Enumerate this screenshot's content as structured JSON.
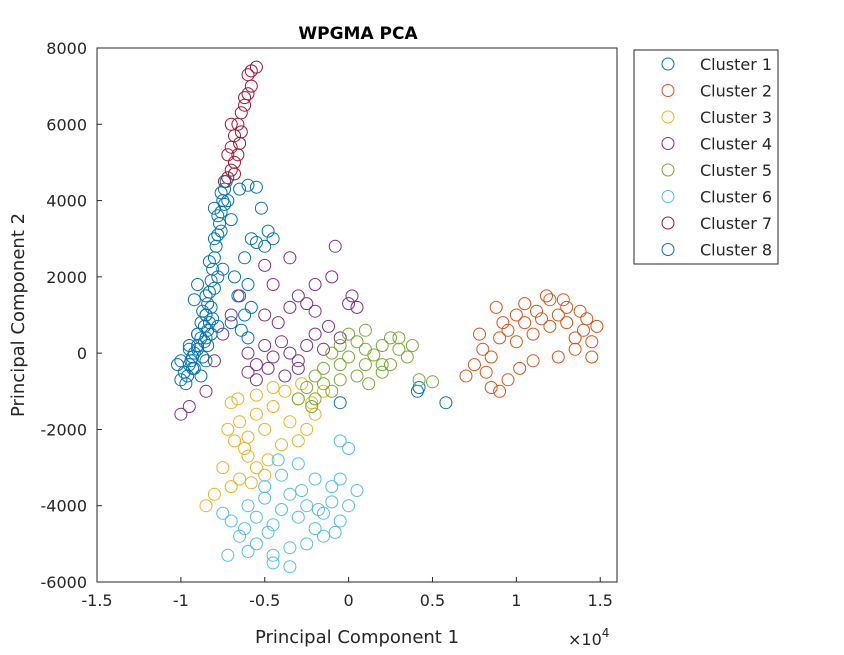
{
  "chart_data": {
    "type": "scatter",
    "title": "WPGMA PCA",
    "xlabel": "Principal Component 1",
    "ylabel": "Principal Component 2",
    "x_exponent_label": "×10",
    "x_exponent_power": "4",
    "x_scale": 10000,
    "xlim": [
      -1.5,
      1.6
    ],
    "ylim": [
      -6000,
      8000
    ],
    "xticks": [
      -1.5,
      -1,
      -0.5,
      0,
      0.5,
      1,
      1.5
    ],
    "xtick_labels": [
      "-1.5",
      "-1",
      "-0.5",
      "0",
      "0.5",
      "1",
      "1.5"
    ],
    "yticks": [
      -6000,
      -4000,
      -2000,
      0,
      2000,
      4000,
      6000,
      8000
    ],
    "ytick_labels": [
      "-6000",
      "-4000",
      "-2000",
      "0",
      "2000",
      "4000",
      "6000",
      "8000"
    ],
    "marker": "open-circle",
    "legend_position": "outside-top-right",
    "series": [
      {
        "name": "Cluster 1",
        "color": "#0072BD",
        "points": [
          [
            -1.0,
            -200
          ],
          [
            -0.93,
            -400
          ],
          [
            -0.97,
            -800
          ],
          [
            -0.9,
            500
          ],
          [
            -0.88,
            -600
          ],
          [
            -0.85,
            -200
          ],
          [
            -1.02,
            -300
          ],
          [
            -0.95,
            100
          ],
          [
            -0.6,
            4400
          ],
          [
            -0.65,
            4300
          ],
          [
            -0.55,
            4350
          ],
          [
            -0.58,
            3000
          ],
          [
            -0.5,
            2800
          ],
          [
            -0.45,
            3000
          ],
          [
            -0.48,
            3200
          ],
          [
            -0.7,
            3500
          ],
          [
            -0.62,
            2500
          ],
          [
            -0.75,
            2200
          ],
          [
            -0.52,
            3800
          ],
          [
            -0.55,
            2900
          ],
          [
            -0.72,
            4000
          ],
          [
            -0.8,
            3800
          ],
          [
            -0.68,
            2000
          ],
          [
            -0.6,
            1800
          ],
          [
            -0.66,
            1500
          ],
          [
            -0.58,
            1200
          ],
          [
            -0.62,
            1000
          ],
          [
            -0.7,
            800
          ],
          [
            -0.64,
            600
          ],
          [
            -0.6,
            400
          ],
          [
            -0.05,
            -1300
          ],
          [
            0.42,
            -900
          ],
          [
            0.58,
            -1300
          ],
          [
            0.41,
            -1000
          ],
          [
            -0.9,
            1800
          ],
          [
            -0.92,
            1400
          ],
          [
            -0.85,
            1000
          ],
          [
            -0.78,
            700
          ]
        ]
      },
      {
        "name": "Cluster 2",
        "color": "#D95319",
        "points": [
          [
            0.7,
            -600
          ],
          [
            0.75,
            -300
          ],
          [
            0.8,
            100
          ],
          [
            0.85,
            -100
          ],
          [
            0.9,
            400
          ],
          [
            0.95,
            600
          ],
          [
            1.0,
            300
          ],
          [
            1.05,
            800
          ],
          [
            1.1,
            500
          ],
          [
            1.15,
            900
          ],
          [
            1.2,
            700
          ],
          [
            1.25,
            1000
          ],
          [
            1.3,
            800
          ],
          [
            1.35,
            400
          ],
          [
            1.4,
            600
          ],
          [
            1.45,
            300
          ],
          [
            1.48,
            700
          ],
          [
            1.42,
            900
          ],
          [
            1.3,
            1200
          ],
          [
            1.2,
            1400
          ],
          [
            1.12,
            1100
          ],
          [
            1.0,
            1000
          ],
          [
            0.92,
            800
          ],
          [
            0.88,
            1200
          ],
          [
            1.05,
            1300
          ],
          [
            1.38,
            1100
          ],
          [
            0.85,
            -900
          ],
          [
            0.9,
            -1000
          ],
          [
            0.95,
            -700
          ],
          [
            1.02,
            -400
          ],
          [
            1.1,
            -200
          ],
          [
            1.25,
            -100
          ],
          [
            1.35,
            100
          ],
          [
            1.45,
            -100
          ],
          [
            1.18,
            1500
          ],
          [
            1.28,
            1400
          ],
          [
            0.78,
            500
          ],
          [
            0.82,
            -500
          ]
        ]
      },
      {
        "name": "Cluster 3",
        "color": "#EDB120",
        "points": [
          [
            -0.7,
            -1300
          ],
          [
            -0.65,
            -1800
          ],
          [
            -0.6,
            -2200
          ],
          [
            -0.55,
            -1600
          ],
          [
            -0.5,
            -2000
          ],
          [
            -0.45,
            -1400
          ],
          [
            -0.4,
            -2400
          ],
          [
            -0.35,
            -1800
          ],
          [
            -0.3,
            -1200
          ],
          [
            -0.25,
            -2000
          ],
          [
            -0.2,
            -1600
          ],
          [
            -0.15,
            -1000
          ],
          [
            -0.6,
            -2700
          ],
          [
            -0.55,
            -3000
          ],
          [
            -0.65,
            -3300
          ],
          [
            -0.75,
            -3000
          ],
          [
            -0.8,
            -3700
          ],
          [
            -0.85,
            -4000
          ],
          [
            -0.7,
            -3500
          ],
          [
            -0.62,
            -2500
          ],
          [
            -0.48,
            -2800
          ],
          [
            -0.38,
            -1000
          ],
          [
            -0.28,
            -800
          ],
          [
            -0.45,
            -900
          ],
          [
            -0.55,
            -1100
          ],
          [
            -0.66,
            -1200
          ],
          [
            -0.72,
            -2000
          ],
          [
            -0.68,
            -2300
          ],
          [
            -0.58,
            -3400
          ],
          [
            -0.5,
            -3200
          ],
          [
            -0.3,
            -2300
          ],
          [
            -0.22,
            -1300
          ]
        ]
      },
      {
        "name": "Cluster 4",
        "color": "#7E2F8E",
        "points": [
          [
            -0.6,
            0
          ],
          [
            -0.55,
            -300
          ],
          [
            -0.5,
            200
          ],
          [
            -0.45,
            -100
          ],
          [
            -0.4,
            300
          ],
          [
            -0.35,
            0
          ],
          [
            -0.3,
            -200
          ],
          [
            -0.25,
            200
          ],
          [
            -0.2,
            500
          ],
          [
            -0.15,
            100
          ],
          [
            -0.6,
            -500
          ],
          [
            -0.55,
            -700
          ],
          [
            -0.48,
            -400
          ],
          [
            -0.38,
            -600
          ],
          [
            -0.3,
            -400
          ],
          [
            -0.5,
            1000
          ],
          [
            -0.42,
            800
          ],
          [
            -0.35,
            1200
          ],
          [
            -0.3,
            1500
          ],
          [
            -0.25,
            1300
          ],
          [
            -0.2,
            1100
          ],
          [
            -0.45,
            1800
          ],
          [
            -0.5,
            2300
          ],
          [
            -0.35,
            2500
          ],
          [
            -0.2,
            1800
          ],
          [
            -0.1,
            2000
          ],
          [
            -0.08,
            2800
          ],
          [
            0.02,
            1500
          ],
          [
            0.05,
            1200
          ],
          [
            -0.65,
            1500
          ],
          [
            -0.7,
            1000
          ],
          [
            -0.75,
            500
          ],
          [
            -0.8,
            -200
          ],
          [
            -0.85,
            -1000
          ],
          [
            -1.0,
            -1600
          ],
          [
            -0.95,
            -1400
          ],
          [
            -0.12,
            700
          ],
          [
            -0.05,
            400
          ],
          [
            0.0,
            1300
          ]
        ]
      },
      {
        "name": "Cluster 5",
        "color": "#77AC30",
        "points": [
          [
            -0.1,
            0
          ],
          [
            -0.05,
            200
          ],
          [
            0.0,
            -100
          ],
          [
            0.05,
            300
          ],
          [
            0.1,
            100
          ],
          [
            0.15,
            -50
          ],
          [
            0.2,
            200
          ],
          [
            0.25,
            400
          ],
          [
            0.3,
            100
          ],
          [
            0.35,
            -100
          ],
          [
            0.38,
            200
          ],
          [
            0.0,
            500
          ],
          [
            0.1,
            600
          ],
          [
            0.2,
            -300
          ],
          [
            -0.05,
            -300
          ],
          [
            -0.15,
            -400
          ],
          [
            -0.2,
            -600
          ],
          [
            -0.25,
            -900
          ],
          [
            -0.3,
            -1200
          ],
          [
            -0.15,
            -800
          ],
          [
            -0.05,
            -700
          ],
          [
            0.05,
            -600
          ],
          [
            0.12,
            -800
          ],
          [
            -0.1,
            -1000
          ],
          [
            0.2,
            -500
          ],
          [
            0.25,
            -300
          ],
          [
            0.42,
            -700
          ],
          [
            0.5,
            -750
          ],
          [
            -0.2,
            -1200
          ],
          [
            -0.22,
            -1400
          ],
          [
            0.3,
            400
          ],
          [
            0.1,
            -300
          ]
        ]
      },
      {
        "name": "Cluster 6",
        "color": "#4DBEEE",
        "points": [
          [
            -0.6,
            -4000
          ],
          [
            -0.55,
            -4300
          ],
          [
            -0.5,
            -3800
          ],
          [
            -0.45,
            -4500
          ],
          [
            -0.4,
            -4100
          ],
          [
            -0.35,
            -3700
          ],
          [
            -0.3,
            -4300
          ],
          [
            -0.25,
            -4000
          ],
          [
            -0.2,
            -4600
          ],
          [
            -0.15,
            -4200
          ],
          [
            -0.1,
            -3900
          ],
          [
            -0.05,
            -4400
          ],
          [
            0.0,
            -4000
          ],
          [
            -0.7,
            -4400
          ],
          [
            -0.75,
            -4200
          ],
          [
            -0.65,
            -4800
          ],
          [
            -0.55,
            -5000
          ],
          [
            -0.45,
            -5300
          ],
          [
            -0.35,
            -5100
          ],
          [
            -0.25,
            -5000
          ],
          [
            -0.15,
            -4800
          ],
          [
            -0.4,
            -3200
          ],
          [
            -0.3,
            -2900
          ],
          [
            -0.2,
            -3300
          ],
          [
            -0.1,
            -3500
          ],
          [
            -0.05,
            -3300
          ],
          [
            0.05,
            -3600
          ],
          [
            0.0,
            -2500
          ],
          [
            -0.05,
            -2300
          ],
          [
            -0.35,
            -5600
          ],
          [
            -0.45,
            -5500
          ],
          [
            -0.6,
            -5200
          ],
          [
            -0.72,
            -5300
          ],
          [
            -0.5,
            -3500
          ],
          [
            -0.42,
            -2800
          ],
          [
            -0.28,
            -3600
          ],
          [
            -0.18,
            -4100
          ],
          [
            -0.08,
            -4700
          ],
          [
            -0.62,
            -4600
          ],
          [
            -0.48,
            -4700
          ]
        ]
      },
      {
        "name": "Cluster 7",
        "color": "#A2142F",
        "points": [
          [
            -0.72,
            4600
          ],
          [
            -0.7,
            4800
          ],
          [
            -0.68,
            5000
          ],
          [
            -0.66,
            5200
          ],
          [
            -0.7,
            5400
          ],
          [
            -0.65,
            5500
          ],
          [
            -0.68,
            5700
          ],
          [
            -0.66,
            6000
          ],
          [
            -0.64,
            6300
          ],
          [
            -0.62,
            6500
          ],
          [
            -0.6,
            6800
          ],
          [
            -0.58,
            7000
          ],
          [
            -0.6,
            7300
          ],
          [
            -0.58,
            7400
          ],
          [
            -0.55,
            7500
          ],
          [
            -0.7,
            6000
          ],
          [
            -0.72,
            5200
          ],
          [
            -0.68,
            4700
          ],
          [
            -0.74,
            4500
          ],
          [
            -0.64,
            5800
          ],
          [
            -0.62,
            6700
          ]
        ]
      },
      {
        "name": "Cluster 8",
        "color": "#0072BD",
        "points": [
          [
            -1.0,
            -700
          ],
          [
            -0.98,
            -500
          ],
          [
            -0.95,
            -300
          ],
          [
            -0.93,
            -100
          ],
          [
            -0.92,
            0
          ],
          [
            -0.9,
            200
          ],
          [
            -0.88,
            400
          ],
          [
            -0.86,
            700
          ],
          [
            -0.85,
            1000
          ],
          [
            -0.84,
            1300
          ],
          [
            -0.83,
            1600
          ],
          [
            -0.82,
            1900
          ],
          [
            -0.81,
            2200
          ],
          [
            -0.8,
            2500
          ],
          [
            -0.79,
            2800
          ],
          [
            -0.78,
            3100
          ],
          [
            -0.77,
            3400
          ],
          [
            -0.76,
            3700
          ],
          [
            -0.75,
            4000
          ],
          [
            -0.74,
            4300
          ],
          [
            -0.73,
            4500
          ],
          [
            -0.95,
            200
          ],
          [
            -0.9,
            500
          ],
          [
            -0.88,
            800
          ],
          [
            -0.92,
            -400
          ],
          [
            -0.86,
            300
          ],
          [
            -0.84,
            600
          ],
          [
            -0.82,
            1200
          ],
          [
            -0.87,
            1100
          ],
          [
            -0.85,
            1500
          ],
          [
            -0.8,
            1700
          ],
          [
            -0.83,
            2400
          ],
          [
            -0.78,
            2000
          ],
          [
            -0.8,
            3000
          ],
          [
            -0.76,
            3200
          ],
          [
            -0.78,
            3600
          ],
          [
            -0.74,
            3900
          ],
          [
            -0.76,
            4200
          ],
          [
            -0.94,
            -200
          ],
          [
            -0.96,
            -600
          ],
          [
            -0.9,
            100
          ],
          [
            -0.87,
            -100
          ],
          [
            -0.84,
            200
          ],
          [
            -0.82,
            500
          ],
          [
            -0.81,
            900
          ],
          [
            -0.85,
            400
          ],
          [
            -0.83,
            800
          ]
        ]
      }
    ]
  }
}
